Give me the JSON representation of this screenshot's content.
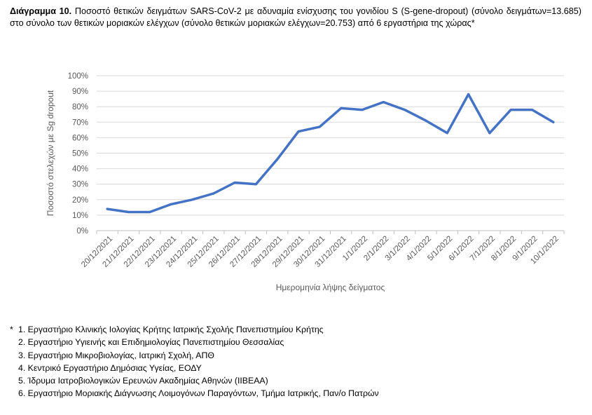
{
  "caption": {
    "label": "Διάγραμμα 10.",
    "text": "Ποσοστό θετικών δειγμάτων SARS-CoV-2 με αδυναμία ενίσχυσης του γονιδίου S (S-gene-dropout) (σύνολο δειγμάτων=13.685) στο σύνολο των θετικών μοριακών ελέγχων (σύνολο θετικών μοριακών ελέγχων=20.753) από 6 εργαστήρια της χώρας*"
  },
  "chart_data": {
    "type": "line",
    "xlabel": "Ημερομηνία λήψης δείγματος",
    "ylabel": "Ποσοστό στελεχών με Sg dropout",
    "ylim": [
      0,
      100
    ],
    "yticks": [
      "0%",
      "10%",
      "20%",
      "30%",
      "40%",
      "50%",
      "60%",
      "70%",
      "80%",
      "90%",
      "100%"
    ],
    "grid": "horizontal",
    "categories": [
      "20/12/2021",
      "21/12/2021",
      "22/12/2021",
      "23/12/2021",
      "24/12/2021",
      "25/12/2021",
      "26/12/2021",
      "27/12/2021",
      "28/12/2021",
      "29/12/2021",
      "30/12/2021",
      "31/12/2021",
      "1/1/2022",
      "2/1/2022",
      "3/1/2022",
      "4/1/2022",
      "5/1/2022",
      "6/1/2022",
      "7/1/2022",
      "8/1/2022",
      "9/1/2022",
      "10/1/2022"
    ],
    "series": [
      {
        "values": [
          14,
          12,
          12,
          17,
          20,
          24,
          31,
          30,
          46,
          64,
          67,
          79,
          78,
          83,
          78,
          71,
          63,
          88,
          63,
          78,
          78,
          70
        ]
      }
    ],
    "line_color": "#4472C4",
    "grid_color": "#D9D9D9"
  },
  "footnotes": {
    "marker": "*",
    "items": [
      "1. Εργαστήριο Κλινικής Ιολογίας Κρήτης Ιατρικής Σχολής Πανεπιστημίου Κρήτης",
      "2. Εργαστήριο Υγιεινής και Επιδημιολογίας Πανεπιστημίου Θεσσαλίας",
      "3. Εργαστήριο Μικροβιολογίας, Ιατρική Σχολή, ΑΠΘ",
      "4. Κεντρικό Εργαστήριο Δημόσιας Υγείας, ΕΟΔΥ",
      "5. Ίδρυμα Ιατροβιολογικών Ερευνών Ακαδημίας Αθηνών (ΙΙΒΕΑΑ)",
      "6. Εργαστήριο Μοριακής Διάγνωσης Λοιμογόνων Παραγόντων, Τμήμα Ιατρικής, Παν/ο Πατρών"
    ]
  }
}
